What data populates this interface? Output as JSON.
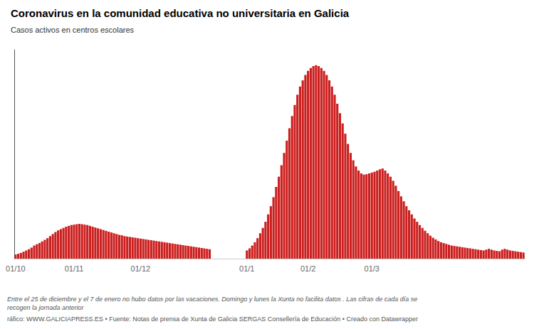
{
  "chart_data": {
    "type": "bar",
    "title": "Coronavirus en la comunidad educativa no universitaria en Galicia",
    "subtitle": "Casos activos en centros escolares",
    "annotations": [
      "Entre el 25 de diciembre y el 7 de enero no hubo datos por las vacaciones. Domingo y lunes la Xunta no facilita datos . Las cifras de cada día se recogen la jornada anterior",
      "ráfico: WWW.GALICIAPRESS.ES • Fuente: Notas de prensa de Xunta de Galicia SERGAS Consellería de Educación • Creado con Datawrapper"
    ],
    "color": "#cc1f1f",
    "categories": [
      "01/10",
      null,
      null,
      null,
      null,
      null,
      null,
      null,
      null,
      null,
      null,
      null,
      null,
      null,
      null,
      null,
      null,
      null,
      null,
      null,
      null,
      null,
      "01/11",
      null,
      null,
      null,
      null,
      null,
      null,
      null,
      null,
      null,
      null,
      null,
      null,
      null,
      null,
      null,
      null,
      null,
      null,
      null,
      null,
      null,
      null,
      null,
      null,
      "01/12",
      null,
      null,
      null,
      null,
      null,
      null,
      null,
      null,
      null,
      null,
      null,
      null,
      null,
      null,
      null,
      null,
      null,
      null,
      null,
      null,
      null,
      null,
      null,
      null,
      null,
      null,
      null,
      null,
      null,
      null,
      null,
      null,
      null,
      null,
      null,
      null,
      null,
      null,
      null,
      "01/1",
      null,
      null,
      null,
      null,
      null,
      null,
      null,
      null,
      null,
      null,
      null,
      null,
      null,
      null,
      null,
      null,
      null,
      null,
      null,
      null,
      null,
      null,
      "01/2",
      null,
      null,
      null,
      null,
      null,
      null,
      null,
      null,
      null,
      null,
      null,
      null,
      null,
      null,
      null,
      null,
      null,
      null,
      null,
      null,
      null,
      null,
      null,
      "01/3",
      null,
      null,
      null,
      null,
      null,
      null,
      null,
      null,
      null,
      null,
      null,
      null,
      null,
      null,
      null,
      null,
      null,
      null,
      null,
      null,
      null,
      null,
      null,
      null,
      null,
      null,
      null,
      null,
      null,
      null,
      null,
      null,
      null,
      null,
      null,
      null,
      null,
      null,
      null,
      null,
      null,
      null,
      null,
      null,
      null,
      null,
      null,
      null,
      null,
      null,
      null,
      null,
      null,
      null,
      null,
      null,
      null
    ],
    "values": [
      10,
      12,
      14,
      17,
      20,
      23,
      27,
      32,
      35,
      38,
      42,
      46,
      50,
      55,
      60,
      65,
      69,
      72,
      75,
      78,
      80,
      82,
      83,
      84,
      85,
      84,
      83,
      82,
      80,
      78,
      76,
      74,
      72,
      70,
      68,
      66,
      64,
      62,
      60,
      58,
      57,
      55,
      54,
      53,
      52,
      51,
      50,
      49,
      48,
      47,
      46,
      45,
      44,
      43,
      42,
      41,
      40,
      39,
      38,
      37,
      36,
      35,
      34,
      33,
      32,
      31,
      30,
      29,
      28,
      27,
      26,
      25,
      24,
      23,
      0,
      0,
      0,
      0,
      0,
      0,
      0,
      0,
      0,
      0,
      0,
      0,
      0,
      20,
      25,
      32,
      40,
      50,
      62,
      75,
      90,
      108,
      128,
      150,
      175,
      200,
      228,
      258,
      288,
      318,
      348,
      375,
      400,
      420,
      435,
      448,
      458,
      465,
      470,
      472,
      470,
      465,
      458,
      448,
      435,
      420,
      400,
      378,
      355,
      330,
      305,
      280,
      258,
      240,
      225,
      215,
      208,
      205,
      206,
      208,
      210,
      212,
      215,
      218,
      220,
      215,
      208,
      200,
      190,
      178,
      165,
      152,
      140,
      128,
      118,
      108,
      98,
      90,
      82,
      75,
      68,
      62,
      56,
      51,
      47,
      43,
      40,
      38,
      36,
      34,
      32,
      31,
      30,
      29,
      28,
      27,
      26,
      25,
      24,
      23,
      22,
      21,
      20,
      22,
      24,
      22,
      20,
      19,
      18,
      22,
      24,
      22,
      20,
      19,
      18,
      17,
      16,
      15
    ],
    "ylim": [
      0,
      509.76
    ],
    "tick_labels": "x",
    "grid": false
  }
}
